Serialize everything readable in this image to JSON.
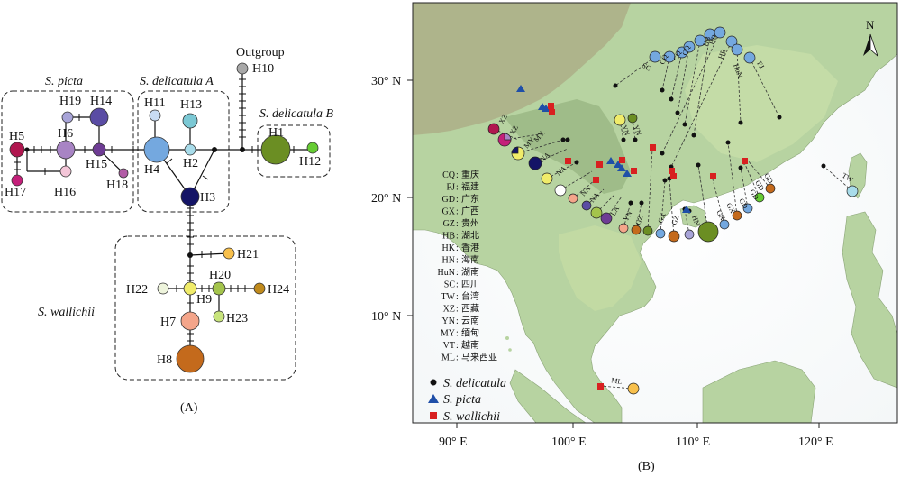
{
  "panelA": {
    "caption": "(A)",
    "groups": {
      "picta": "S. picta",
      "delA": "S. delicatula A",
      "delB": "S. delicatula B",
      "wall": "S. wallichii"
    },
    "outgroup_label": "Outgroup",
    "haplotypes": {
      "H1": "H1",
      "H2": "H2",
      "H3": "H3",
      "H4": "H4",
      "H5": "H5",
      "H6": "H6",
      "H7": "H7",
      "H8": "H8",
      "H9": "H9",
      "H10": "H10",
      "H11": "H11",
      "H12": "H12",
      "H13": "H13",
      "H14": "H14",
      "H15": "H15",
      "H16": "H16",
      "H17": "H17",
      "H18": "H18",
      "H19": "H19",
      "H20": "H20",
      "H21": "H21",
      "H22": "H22",
      "H23": "H23",
      "H24": "H24"
    },
    "colors": {
      "H1": "#6b8e23",
      "H2": "#a8dcea",
      "H3": "#141466",
      "H4": "#74a8df",
      "H5": "#b0174f",
      "H6": "#a884c4",
      "H7": "#f4a58a",
      "H8": "#c46a1c",
      "H9": "#f0ec6a",
      "H10": "#a8a8a8",
      "H11": "#c8dcf4",
      "H12": "#66cc33",
      "H13": "#7bc8d4",
      "H14": "#5a4ca4",
      "H15": "#6e3c94",
      "H16": "#f4c6d8",
      "H17": "#c4207a",
      "H18": "#b25ba6",
      "H19": "#a8a4d8",
      "H20": "#a4c44c",
      "H21": "#f8c04c",
      "H22": "#eef4dc",
      "H23": "#c8e47c",
      "H24": "#c08a1c"
    }
  },
  "panelB": {
    "caption": "(B)",
    "north": "N",
    "lat_ticks": [
      "30° N",
      "20° N",
      "10° N"
    ],
    "lon_ticks": [
      "90° E",
      "100° E",
      "110° E",
      "120° E"
    ],
    "abbrev_legend": [
      {
        "code": "CQ",
        "name": "重庆"
      },
      {
        "code": "FJ",
        "name": "福建"
      },
      {
        "code": "GD",
        "name": "广东"
      },
      {
        "code": "GX",
        "name": "广西"
      },
      {
        "code": "GZ",
        "name": "贵州"
      },
      {
        "code": "HB",
        "name": "湖北"
      },
      {
        "code": "HK",
        "name": "香港"
      },
      {
        "code": "HN",
        "name": "海南"
      },
      {
        "code": "HuN",
        "name": "湖南"
      },
      {
        "code": "SC",
        "name": "四川"
      },
      {
        "code": "TW",
        "name": "台湾"
      },
      {
        "code": "XZ",
        "name": "西藏"
      },
      {
        "code": "YN",
        "name": "云南"
      },
      {
        "code": "MY",
        "name": "缅甸"
      },
      {
        "code": "VT",
        "name": "越南"
      },
      {
        "code": "ML",
        "name": "马来西亚"
      }
    ],
    "species_legend": [
      {
        "symbol": "circle",
        "color": "#111111",
        "label": "S. delicatula"
      },
      {
        "symbol": "triangle",
        "color": "#1f4fa8",
        "label": "S. picta"
      },
      {
        "symbol": "square",
        "color": "#d82020",
        "label": "S. wallichii"
      }
    ],
    "site_labels": [
      "SC",
      "CQ",
      "CQ",
      "CQ",
      "HB",
      "HB",
      "HB",
      "HuN",
      "FJ",
      "XZ",
      "XZ",
      "MY",
      "MY",
      "YN",
      "YN",
      "NA",
      "NA",
      "NA",
      "NA",
      "LA",
      "YN",
      "GZ",
      "GX",
      "GZ",
      "GX",
      "GX",
      "HN",
      "GD",
      "GD",
      "GD",
      "GD",
      "TW",
      "ML"
    ]
  }
}
